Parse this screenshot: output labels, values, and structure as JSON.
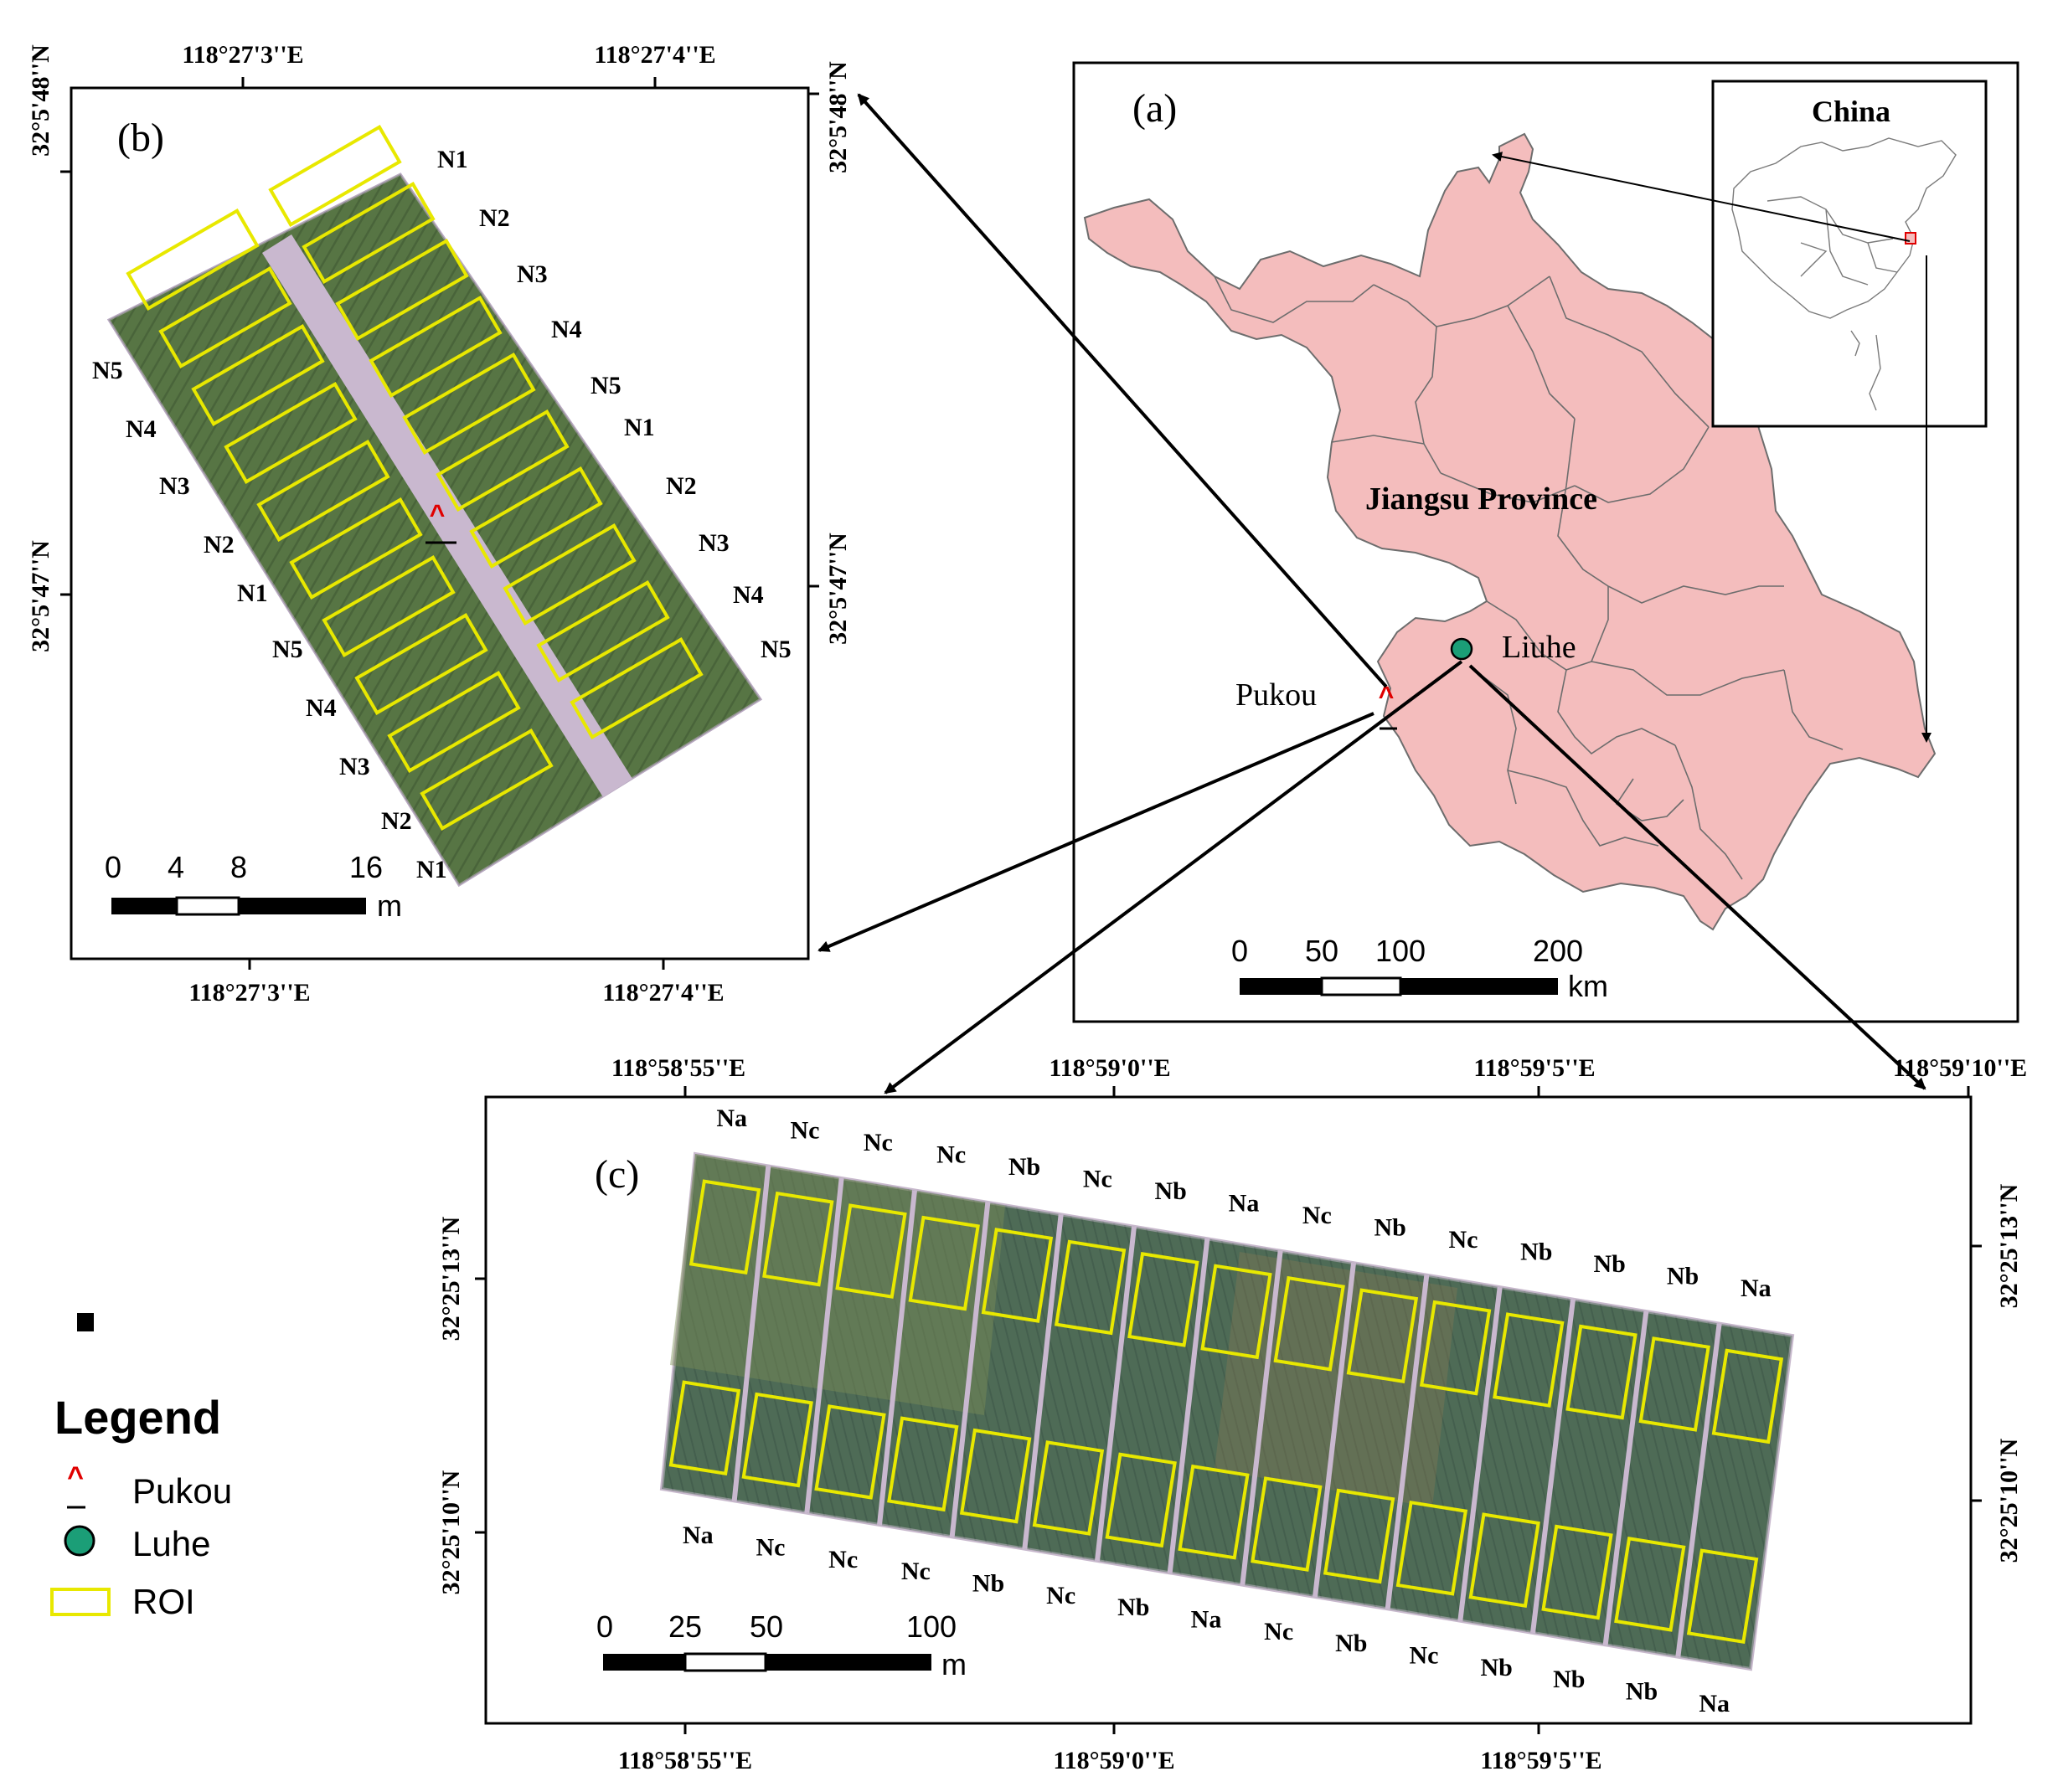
{
  "panels": {
    "a": {
      "label": "(a)",
      "province_label": "Jiangsu Province",
      "inset_label": "China",
      "places": [
        "Pukou",
        "Liuhe"
      ],
      "scale_ticks": [
        "0",
        "50",
        "100",
        "200"
      ],
      "scale_unit": "km"
    },
    "b": {
      "label": "(b)",
      "top_lon": [
        "118°27'3''E",
        "118°27'4''E"
      ],
      "bottom_lon": [
        "118°27'3''E",
        "118°27'4''E"
      ],
      "left_lat": [
        "32°5'48''N",
        "32°5'47''N"
      ],
      "right_lat": [
        "32°5'48''N",
        "32°5'47''N"
      ],
      "right_labels": [
        "N1",
        "N2",
        "N3",
        "N4",
        "N5",
        "N1",
        "N2",
        "N3",
        "N4",
        "N5"
      ],
      "left_labels": [
        "N5",
        "N4",
        "N3",
        "N2",
        "N1",
        "N5",
        "N4",
        "N3",
        "N2",
        "N1"
      ],
      "scale_ticks": [
        "0",
        "4",
        "8",
        "16"
      ],
      "scale_unit": "m"
    },
    "c": {
      "label": "(c)",
      "top_lon": [
        "118°58'55''E",
        "118°59'0''E",
        "118°59'5''E",
        "118°59'10''E"
      ],
      "bottom_lon": [
        "118°58'55''E",
        "118°59'0''E",
        "118°59'5''E"
      ],
      "left_lat": [
        "32°25'13''N",
        "32°25'10''N"
      ],
      "right_lat": [
        "32°25'13''N",
        "32°25'10''N"
      ],
      "top_labels": [
        "Na",
        "Nc",
        "Nc",
        "Nc",
        "Nb",
        "Nc",
        "Nb",
        "Na",
        "Nc",
        "Nb",
        "Nc",
        "Nb",
        "Nb",
        "Nb",
        "Na"
      ],
      "bottom_labels": [
        "Na",
        "Nc",
        "Nc",
        "Nc",
        "Nb",
        "Nc",
        "Nb",
        "Na",
        "Nc",
        "Nb",
        "Nc",
        "Nb",
        "Nb",
        "Nb",
        "Na"
      ],
      "scale_ticks": [
        "0",
        "25",
        "50",
        "100"
      ],
      "scale_unit": "m"
    }
  },
  "legend": {
    "title": "Legend",
    "items": [
      {
        "label": "Pukou",
        "symbol": "caret-icon"
      },
      {
        "label": "Luhe",
        "symbol": "circle-icon"
      },
      {
        "label": "ROI",
        "symbol": "roi-box-icon"
      }
    ]
  },
  "colors": {
    "province_fill": "#f4bdbd",
    "province_stroke": "#6d6d6d",
    "luhe_marker": "#1b9e77",
    "pukou_marker": "#e00000",
    "roi_stroke": "#e8e800",
    "field_green": "#4a6a3a",
    "field_path": "#c9b8cf"
  }
}
